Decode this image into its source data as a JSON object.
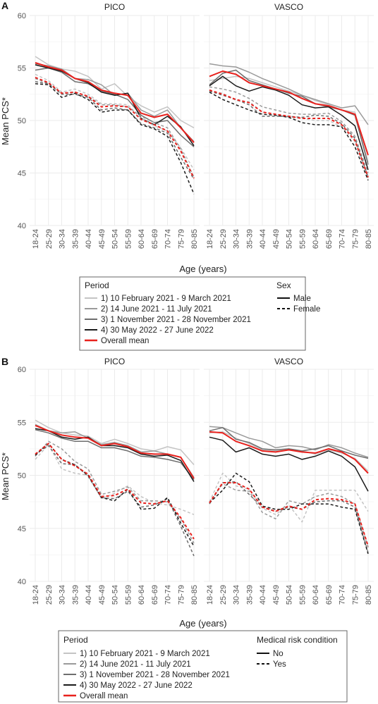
{
  "panels": [
    {
      "letter": "A",
      "ylabel": "Mean PCS*",
      "xlabel": "Age (years)",
      "legend": {
        "period_title": "Period",
        "group_title": "Sex",
        "group_entries": [
          "Male",
          "Female"
        ]
      }
    },
    {
      "letter": "B",
      "ylabel": "Mean PCS*",
      "xlabel": "Age (years)",
      "legend": {
        "period_title": "Period",
        "group_title": "Medical risk condition",
        "group_entries": [
          "No",
          "Yes"
        ]
      }
    }
  ],
  "period_entries": [
    "1) 10 February 2021 - 9 March 2021",
    "2) 14 June 2021 - 11 July 2021",
    "3) 1 November 2021 - 28 November 2021",
    "4) 30 May 2022 - 27 June 2022",
    "Overall mean"
  ],
  "colors": {
    "p1": "#c4c4c4",
    "p2": "#9a9a9a",
    "p3": "#6e6e6e",
    "p4": "#1a1a1a",
    "overall": "#e8211d",
    "grid": "#ebebeb"
  },
  "chart_data": [
    {
      "type": "line",
      "panel": "A",
      "facet": "PICO",
      "categories": [
        "18-24",
        "25-29",
        "30-34",
        "35-39",
        "40-44",
        "45-49",
        "50-54",
        "55-59",
        "60-64",
        "65-69",
        "70-74",
        "75-79",
        "80-85"
      ],
      "ylim": [
        40,
        60
      ],
      "yticks": [
        40,
        45,
        50,
        55,
        60
      ],
      "series": [
        {
          "name": "1) 10 February 2021 - 9 March 2021",
          "group": "Male",
          "values": [
            56.1,
            55.3,
            54.9,
            54.7,
            54.2,
            53.0,
            53.5,
            52.3,
            51.4,
            50.8,
            51.3,
            50.0,
            49.3
          ]
        },
        {
          "name": "2) 14 June 2021 - 11 July 2021",
          "group": "Male",
          "values": [
            55.4,
            55.2,
            54.9,
            54.0,
            53.9,
            53.4,
            52.4,
            52.6,
            51.0,
            50.4,
            51.0,
            49.3,
            48.0
          ]
        },
        {
          "name": "3) 1 November 2021 - 28 November 2021",
          "group": "Male",
          "values": [
            54.8,
            55.0,
            54.6,
            53.7,
            53.5,
            52.8,
            52.5,
            52.0,
            50.5,
            49.8,
            50.0,
            48.6,
            47.5
          ]
        },
        {
          "name": "4) 30 May 2022 - 27 June 2022",
          "group": "Male",
          "values": [
            55.3,
            55.0,
            54.7,
            54.0,
            53.6,
            52.7,
            52.4,
            52.6,
            50.2,
            49.6,
            50.4,
            49.4,
            47.6
          ]
        },
        {
          "name": "Overall mean",
          "group": "Male",
          "values": [
            55.5,
            55.1,
            54.8,
            54.0,
            53.7,
            52.9,
            52.6,
            52.4,
            50.7,
            50.3,
            50.6,
            49.3,
            47.9
          ]
        },
        {
          "name": "1) 10 February 2021 - 9 March 2021",
          "group": "Female",
          "values": [
            54.4,
            53.8,
            52.7,
            53.0,
            52.5,
            51.6,
            51.6,
            51.5,
            50.2,
            49.5,
            49.0,
            47.4,
            45.3
          ]
        },
        {
          "name": "2) 14 June 2021 - 11 July 2021",
          "group": "Female",
          "values": [
            54.0,
            53.5,
            52.6,
            52.7,
            52.3,
            51.5,
            51.5,
            51.3,
            50.4,
            49.8,
            49.3,
            47.3,
            44.6
          ]
        },
        {
          "name": "3) 1 November 2021 - 28 November 2021",
          "group": "Female",
          "values": [
            53.7,
            53.5,
            52.5,
            52.5,
            52.2,
            51.0,
            51.2,
            51.0,
            49.7,
            49.3,
            48.8,
            46.5,
            44.4
          ]
        },
        {
          "name": "4) 30 May 2022 - 27 June 2022",
          "group": "Female",
          "values": [
            53.5,
            53.4,
            52.2,
            52.6,
            52.0,
            50.8,
            51.0,
            51.0,
            49.6,
            49.2,
            48.5,
            46.0,
            43.0
          ]
        },
        {
          "name": "Overall mean",
          "group": "Female",
          "values": [
            54.1,
            53.6,
            52.6,
            52.7,
            52.3,
            51.3,
            51.4,
            51.3,
            50.1,
            49.6,
            49.0,
            47.1,
            44.5
          ]
        }
      ]
    },
    {
      "type": "line",
      "panel": "A",
      "facet": "VASCO",
      "categories": [
        "18-24",
        "25-29",
        "30-34",
        "35-39",
        "40-44",
        "45-49",
        "50-54",
        "55-59",
        "60-64",
        "65-69",
        "70-74",
        "75-79",
        "80-85"
      ],
      "ylim": [
        40,
        60
      ],
      "yticks": [
        40,
        45,
        50,
        55,
        60
      ],
      "series": [
        {
          "name": "1) 10 February 2021 - 9 March 2021",
          "group": "Male",
          "values": [
            53.8,
            54.0,
            54.2,
            54.0,
            53.6,
            53.2,
            52.8,
            52.4,
            51.9,
            51.5,
            51.0,
            50.8,
            46.0
          ]
        },
        {
          "name": "2) 14 June 2021 - 11 July 2021",
          "group": "Male",
          "values": [
            55.4,
            55.2,
            55.1,
            54.6,
            54.0,
            53.5,
            53.0,
            52.4,
            52.0,
            51.6,
            51.2,
            51.4,
            49.6
          ]
        },
        {
          "name": "3) 1 November 2021 - 28 November 2021",
          "group": "Male",
          "values": [
            53.4,
            54.5,
            54.8,
            53.8,
            53.4,
            53.0,
            52.6,
            52.3,
            51.6,
            51.3,
            51.0,
            50.5,
            45.8
          ]
        },
        {
          "name": "4) 30 May 2022 - 27 June 2022",
          "group": "Male",
          "values": [
            53.3,
            54.2,
            53.3,
            52.8,
            53.2,
            52.9,
            52.4,
            51.5,
            51.2,
            51.3,
            50.5,
            49.5,
            45.3
          ]
        },
        {
          "name": "Overall mean",
          "group": "Male",
          "values": [
            54.2,
            54.7,
            54.4,
            53.6,
            53.3,
            53.0,
            52.7,
            52.1,
            51.6,
            51.4,
            51.0,
            50.6,
            46.7
          ]
        },
        {
          "name": "1) 10 February 2021 - 9 March 2021",
          "group": "Female",
          "values": [
            52.8,
            52.6,
            51.9,
            51.8,
            50.8,
            50.6,
            50.3,
            50.2,
            50.0,
            50.0,
            49.4,
            48.0,
            44.5
          ]
        },
        {
          "name": "2) 14 June 2021 - 11 July 2021",
          "group": "Female",
          "values": [
            53.2,
            53.0,
            52.7,
            52.1,
            51.3,
            51.0,
            50.7,
            50.6,
            50.6,
            50.7,
            49.9,
            48.5,
            45.0
          ]
        },
        {
          "name": "3) 1 November 2021 - 28 November 2021",
          "group": "Female",
          "values": [
            52.8,
            52.4,
            52.0,
            51.5,
            50.4,
            50.4,
            50.4,
            50.3,
            50.5,
            50.4,
            49.7,
            48.3,
            44.6
          ]
        },
        {
          "name": "4) 30 May 2022 - 27 June 2022",
          "group": "Female",
          "values": [
            52.7,
            52.0,
            51.5,
            51.0,
            50.6,
            50.5,
            50.3,
            49.8,
            49.6,
            49.6,
            49.4,
            47.5,
            44.3
          ]
        },
        {
          "name": "Overall mean",
          "group": "Female",
          "values": [
            52.9,
            52.5,
            52.0,
            51.7,
            50.8,
            50.6,
            50.4,
            50.2,
            50.2,
            50.2,
            49.6,
            48.1,
            44.6
          ]
        }
      ]
    },
    {
      "type": "line",
      "panel": "B",
      "facet": "PICO",
      "categories": [
        "18-24",
        "25-29",
        "30-34",
        "35-39",
        "40-44",
        "45-49",
        "50-54",
        "55-59",
        "60-64",
        "65-69",
        "70-74",
        "75-79",
        "80-85"
      ],
      "ylim": [
        40,
        60
      ],
      "yticks": [
        40,
        45,
        50,
        55,
        60
      ],
      "series": [
        {
          "name": "1) 10 February 2021 - 9 March 2021",
          "group": "No",
          "values": [
            55.2,
            54.5,
            54.0,
            53.8,
            53.7,
            53.0,
            53.4,
            53.0,
            52.5,
            52.3,
            52.7,
            52.4,
            51.0
          ]
        },
        {
          "name": "2) 14 June 2021 - 11 July 2021",
          "group": "No",
          "values": [
            54.8,
            54.2,
            54.0,
            54.1,
            53.5,
            52.9,
            53.1,
            52.8,
            52.2,
            52.3,
            52.0,
            51.7,
            49.8
          ]
        },
        {
          "name": "3) 1 November 2021 - 28 November 2021",
          "group": "No",
          "values": [
            54.3,
            54.0,
            53.5,
            53.2,
            53.2,
            52.6,
            52.6,
            52.3,
            51.8,
            51.7,
            51.5,
            51.2,
            49.6
          ]
        },
        {
          "name": "4) 30 May 2022 - 27 June 2022",
          "group": "No",
          "values": [
            54.4,
            54.2,
            53.6,
            53.4,
            53.6,
            52.8,
            52.8,
            52.6,
            52.0,
            51.8,
            51.9,
            51.4,
            49.4
          ]
        },
        {
          "name": "Overall mean",
          "group": "No",
          "values": [
            54.7,
            54.2,
            53.8,
            53.6,
            53.5,
            52.8,
            53.0,
            52.7,
            52.1,
            52.0,
            52.0,
            51.7,
            49.7
          ]
        },
        {
          "name": "1) 10 February 2021 - 9 March 2021",
          "group": "Yes",
          "values": [
            51.5,
            52.9,
            50.6,
            50.2,
            50.0,
            47.8,
            48.3,
            49.0,
            48.0,
            47.4,
            47.2,
            46.8,
            46.3
          ]
        },
        {
          "name": "2) 14 June 2021 - 11 July 2021",
          "group": "Yes",
          "values": [
            51.8,
            53.2,
            52.5,
            51.3,
            50.6,
            48.2,
            48.5,
            48.9,
            47.6,
            47.6,
            47.5,
            45.9,
            43.6
          ]
        },
        {
          "name": "3) 1 November 2021 - 28 November 2021",
          "group": "Yes",
          "values": [
            52.0,
            52.8,
            51.1,
            51.0,
            49.9,
            47.9,
            47.8,
            48.5,
            47.0,
            47.2,
            47.8,
            45.2,
            42.4
          ]
        },
        {
          "name": "4) 30 May 2022 - 27 June 2022",
          "group": "Yes",
          "values": [
            51.9,
            53.0,
            51.5,
            51.0,
            50.0,
            47.9,
            47.6,
            48.7,
            46.8,
            46.9,
            47.9,
            45.5,
            43.3
          ]
        },
        {
          "name": "Overall mean",
          "group": "Yes",
          "values": [
            52.0,
            53.0,
            51.5,
            50.9,
            50.1,
            48.0,
            48.1,
            48.7,
            47.4,
            47.3,
            47.6,
            46.0,
            44.0
          ]
        }
      ]
    },
    {
      "type": "line",
      "panel": "B",
      "facet": "VASCO",
      "categories": [
        "18-24",
        "25-29",
        "30-34",
        "35-39",
        "40-44",
        "45-49",
        "50-54",
        "55-59",
        "60-64",
        "65-69",
        "70-74",
        "75-79",
        "80-85"
      ],
      "ylim": [
        40,
        60
      ],
      "yticks": [
        40,
        45,
        50,
        55,
        60
      ],
      "series": [
        {
          "name": "1) 10 February 2021 - 9 March 2021",
          "group": "No",
          "values": [
            54.0,
            54.1,
            53.5,
            53.0,
            52.4,
            52.3,
            52.4,
            52.3,
            52.0,
            52.4,
            52.1,
            51.6,
            50.4
          ]
        },
        {
          "name": "2) 14 June 2021 - 11 July 2021",
          "group": "No",
          "values": [
            54.6,
            54.5,
            54.0,
            53.5,
            53.2,
            52.6,
            52.8,
            52.7,
            52.4,
            52.9,
            52.6,
            52.1,
            51.7
          ]
        },
        {
          "name": "3) 1 November 2021 - 28 November 2021",
          "group": "No",
          "values": [
            54.2,
            54.5,
            53.4,
            53.1,
            52.5,
            52.4,
            52.5,
            52.3,
            52.5,
            52.8,
            52.3,
            51.9,
            51.6
          ]
        },
        {
          "name": "4) 30 May 2022 - 27 June 2022",
          "group": "No",
          "values": [
            53.6,
            53.3,
            52.2,
            52.6,
            52.0,
            51.8,
            52.0,
            51.5,
            51.8,
            52.3,
            51.8,
            50.8,
            48.5
          ]
        },
        {
          "name": "Overall mean",
          "group": "No",
          "values": [
            54.1,
            54.0,
            53.2,
            52.8,
            52.3,
            52.2,
            52.4,
            52.2,
            52.1,
            52.5,
            52.2,
            51.5,
            50.2
          ]
        },
        {
          "name": "1) 10 February 2021 - 9 March 2021",
          "group": "Yes",
          "values": [
            47.5,
            50.2,
            49.0,
            48.7,
            46.9,
            46.3,
            47.2,
            45.6,
            48.6,
            48.6,
            48.6,
            48.6,
            46.6
          ]
        },
        {
          "name": "2) 14 June 2021 - 11 July 2021",
          "group": "Yes",
          "values": [
            47.4,
            49.2,
            48.6,
            48.5,
            46.5,
            45.9,
            47.6,
            47.3,
            48.0,
            48.3,
            48.0,
            47.3,
            43.2
          ]
        },
        {
          "name": "3) 1 November 2021 - 28 November 2021",
          "group": "Yes",
          "values": [
            47.3,
            49.3,
            49.4,
            48.2,
            47.0,
            46.6,
            47.0,
            46.8,
            47.5,
            47.6,
            47.6,
            47.0,
            42.7
          ]
        },
        {
          "name": "4) 30 May 2022 - 27 June 2022",
          "group": "Yes",
          "values": [
            47.4,
            48.6,
            50.2,
            49.4,
            47.1,
            46.8,
            46.8,
            47.3,
            47.3,
            47.3,
            47.0,
            46.8,
            42.6
          ]
        },
        {
          "name": "Overall mean",
          "group": "Yes",
          "values": [
            47.4,
            49.3,
            49.3,
            48.7,
            47.0,
            46.6,
            47.1,
            46.8,
            47.7,
            47.8,
            47.7,
            47.3,
            43.3
          ]
        }
      ]
    }
  ]
}
